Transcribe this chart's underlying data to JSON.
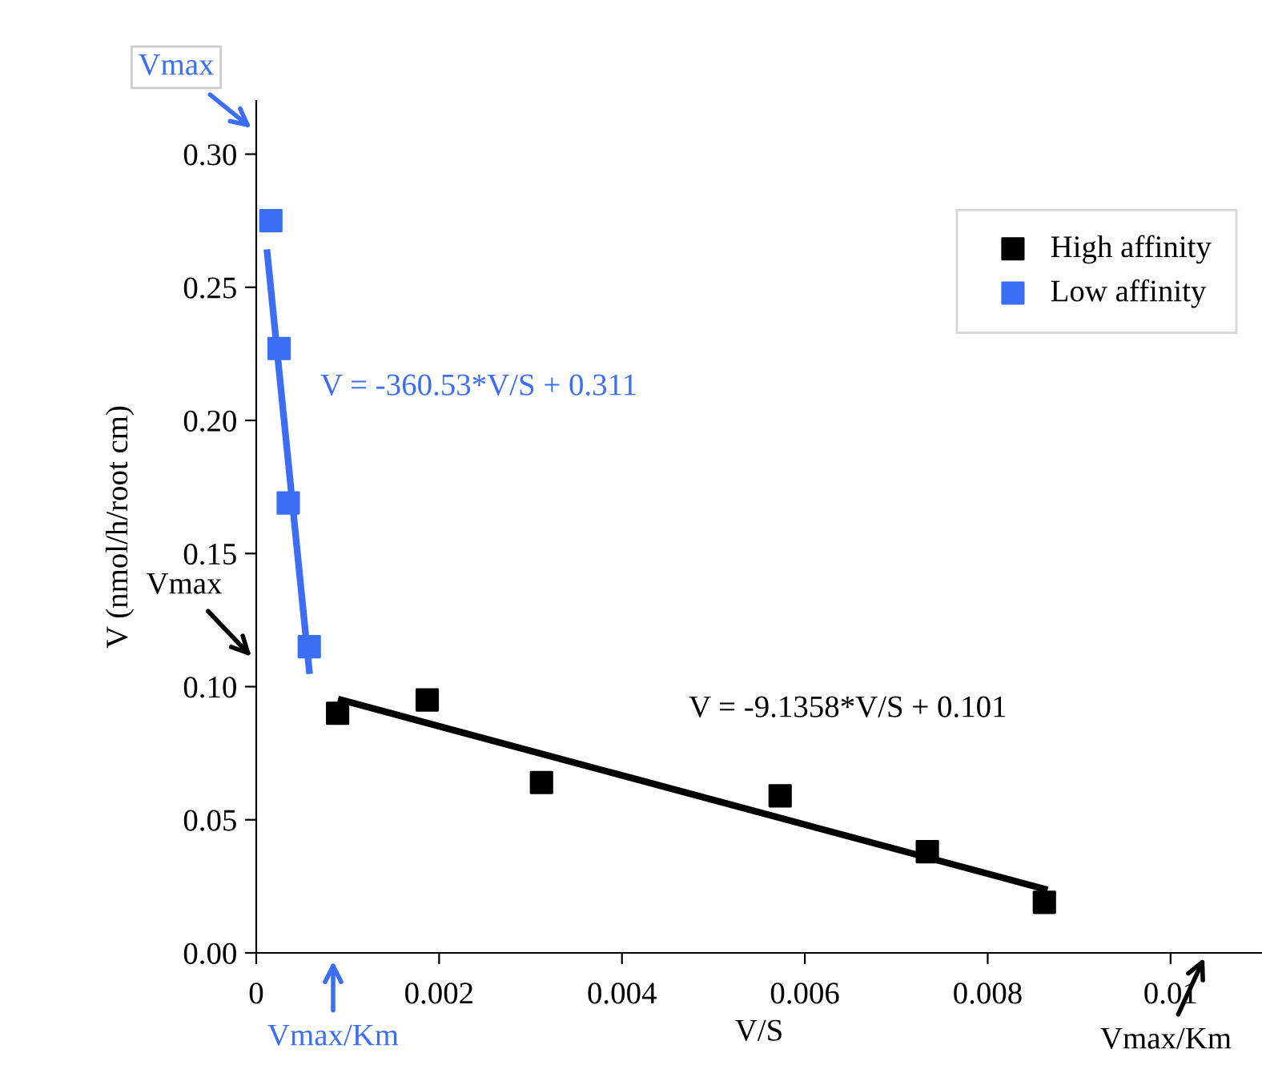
{
  "chart_data": {
    "type": "scatter",
    "xlabel": "V/S",
    "ylabel": "V (nmol/h/root cm)",
    "xlim": [
      0,
      0.011
    ],
    "ylim": [
      0,
      0.32
    ],
    "xticks": [
      0,
      0.002,
      0.004,
      0.006,
      0.008,
      0.01
    ],
    "yticks": [
      {
        "value": 0,
        "label": "0.00"
      },
      {
        "value": 0.05,
        "label": "0.05"
      },
      {
        "value": 0.1,
        "label": "0.10"
      },
      {
        "value": 0.15,
        "label": "0.15"
      },
      {
        "value": 0.2,
        "label": "0.20"
      },
      {
        "value": 0.25,
        "label": "0.25"
      },
      {
        "value": 0.3,
        "label": "0.30"
      }
    ],
    "grid": false,
    "legend": "top right",
    "marker": "square",
    "series": [
      {
        "name": "High affinity",
        "color": "#000000",
        "x": [
          0.00089,
          0.00187,
          0.00312,
          0.00573,
          0.00734,
          0.00862
        ],
        "values": [
          0.09,
          0.095,
          0.064,
          0.059,
          0.038,
          0.019
        ]
      },
      {
        "name": "Low affinity",
        "color": "#3b6ef5",
        "x": [
          0.00016,
          0.00025,
          0.00035,
          0.00058
        ],
        "values": [
          0.275,
          0.227,
          0.169,
          0.115
        ]
      },
      {
        "type": "line",
        "color": "#000000",
        "x": [
          0.00093,
          0.00862
        ],
        "values": [
          0.095,
          0.024
        ],
        "marker": "none"
      },
      {
        "type": "line",
        "color": "#3b6ef5",
        "x": [
          0.00012,
          0.00058
        ],
        "values": [
          0.263,
          0.106
        ],
        "marker": "none"
      }
    ],
    "annotations": [
      "V = -360.53*V/S + 0.311",
      "V = -9.1358*V/S + 0.101",
      "Vmax",
      "Vmax",
      "Vmax/Km",
      "Vmax/Km"
    ]
  }
}
